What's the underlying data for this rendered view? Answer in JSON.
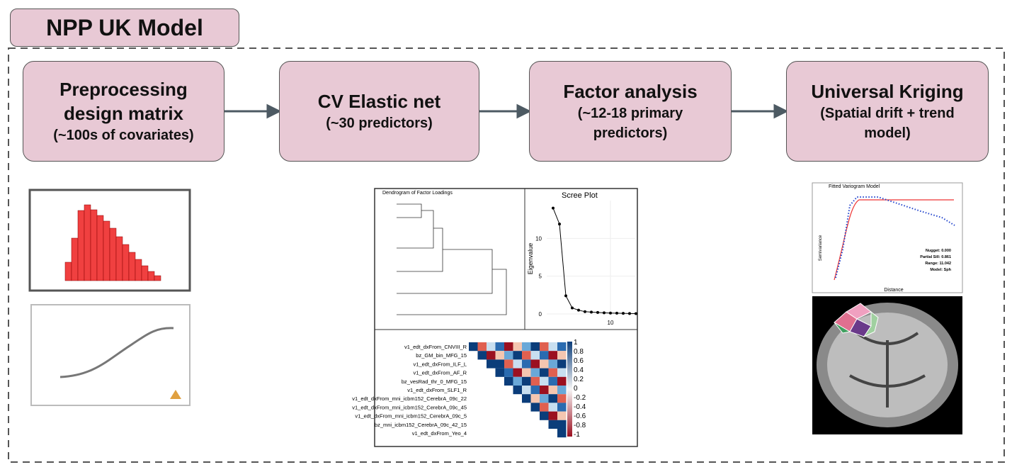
{
  "header": {
    "title": "NPP UK Model"
  },
  "steps": [
    {
      "title": "Preprocessing design matrix",
      "detail": "(~100s of covariates)"
    },
    {
      "title": "CV Elastic net",
      "detail": "(~30 predictors)"
    },
    {
      "title": "Factor analysis",
      "detail": "(~12-18 primary predictors)"
    },
    {
      "title": "Universal Kriging",
      "detail": "(Spatial drift + trend model)"
    }
  ],
  "dendrogram": {
    "title": "Dendrogram of Factor Loadings"
  },
  "scree": {
    "title": "Scree Plot",
    "ylabel": "Eigenvalue",
    "xlim": [
      0,
      15
    ],
    "ylim": [
      0,
      15
    ],
    "xticks": [
      10
    ],
    "yticks": [
      0,
      5,
      10
    ],
    "x": [
      1,
      2,
      3,
      4,
      5,
      6,
      7,
      8,
      9,
      10,
      11,
      12,
      13,
      14
    ],
    "values": [
      14,
      11.9,
      2.4,
      0.8,
      0.5,
      0.3,
      0.25,
      0.2,
      0.15,
      0.12,
      0.1,
      0.08,
      0.06,
      0.05
    ]
  },
  "correlation": {
    "rows": [
      "v1_edt_dxFrom_CNVIII_R",
      "bz_GM_bin_MFG_15",
      "v1_edt_dxFrom_ILF_L",
      "v1_edt_dxFrom_AF_R",
      "bz_vesRad_thr_0_MFG_15",
      "v1_edt_dxFrom_SLF1_R",
      "v1_edt_dxFrom_mni_icbm152_CerebrA_09c_22",
      "v1_edt_dxFrom_mni_icbm152_CerebrA_09c_45",
      "v1_edt_dxFrom_mni_icbm152_CerebrA_09c_5",
      "bz_mni_icbm152_CerebrA_09c_42_15",
      "v1_edt_dxFrom_Yeo_4"
    ],
    "scale": [
      1,
      0.8,
      0.6,
      0.4,
      0.2,
      0,
      -0.2,
      -0.4,
      -0.6,
      -0.8,
      -1
    ]
  },
  "variogram": {
    "title": "Fitted Variogram Model",
    "ylabel": "Semivariance",
    "xlabel": "Distance",
    "stats": [
      "Nugget: 0.000",
      "Partial Sill: 0.861",
      "Range: 11.042",
      "Model: Sph"
    ]
  }
}
